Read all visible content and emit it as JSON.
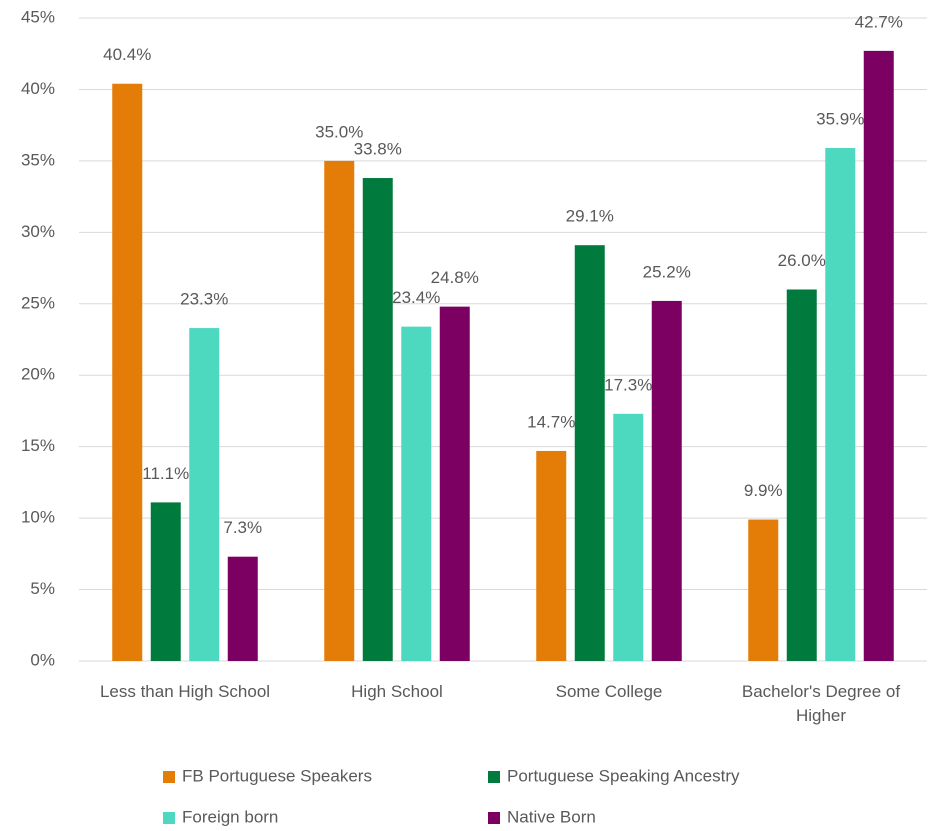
{
  "chart_data": {
    "type": "bar",
    "categories": [
      "Less than High School",
      "High School",
      "Some College",
      "Bachelor's  Degree of Higher"
    ],
    "series": [
      {
        "name": "FB Portuguese Speakers",
        "color": "#e47d07",
        "values": [
          40.4,
          35.0,
          14.7,
          9.9
        ],
        "value_labels": [
          "40.4%",
          "35.0%",
          "14.7%",
          "9.9%"
        ]
      },
      {
        "name": "Portuguese Speaking Ancestry",
        "color": "#007a3d",
        "values": [
          11.1,
          33.8,
          29.1,
          26.0
        ],
        "value_labels": [
          "11.1%",
          "33.8%",
          "29.1%",
          "26.0%"
        ]
      },
      {
        "name": "Foreign born",
        "color": "#4dd8c0",
        "values": [
          23.3,
          23.4,
          17.3,
          35.9
        ],
        "value_labels": [
          "23.3%",
          "23.4%",
          "17.3%",
          "35.9%"
        ]
      },
      {
        "name": "Native Born",
        "color": "#7b0062",
        "values": [
          7.3,
          24.8,
          25.2,
          42.7
        ],
        "value_labels": [
          "7.3%",
          "24.8%",
          "25.2%",
          "42.7%"
        ]
      }
    ],
    "ylim": [
      0,
      45
    ],
    "yticks": [
      {
        "value": 0,
        "label": "0%"
      },
      {
        "value": 5,
        "label": "5%"
      },
      {
        "value": 10,
        "label": "10%"
      },
      {
        "value": 15,
        "label": "15%"
      },
      {
        "value": 20,
        "label": "20%"
      },
      {
        "value": 25,
        "label": "25%"
      },
      {
        "value": 30,
        "label": "30%"
      },
      {
        "value": 35,
        "label": "35%"
      },
      {
        "value": 40,
        "label": "40%"
      },
      {
        "value": 45,
        "label": "45%"
      }
    ],
    "grid": true,
    "legend": "bottom"
  }
}
